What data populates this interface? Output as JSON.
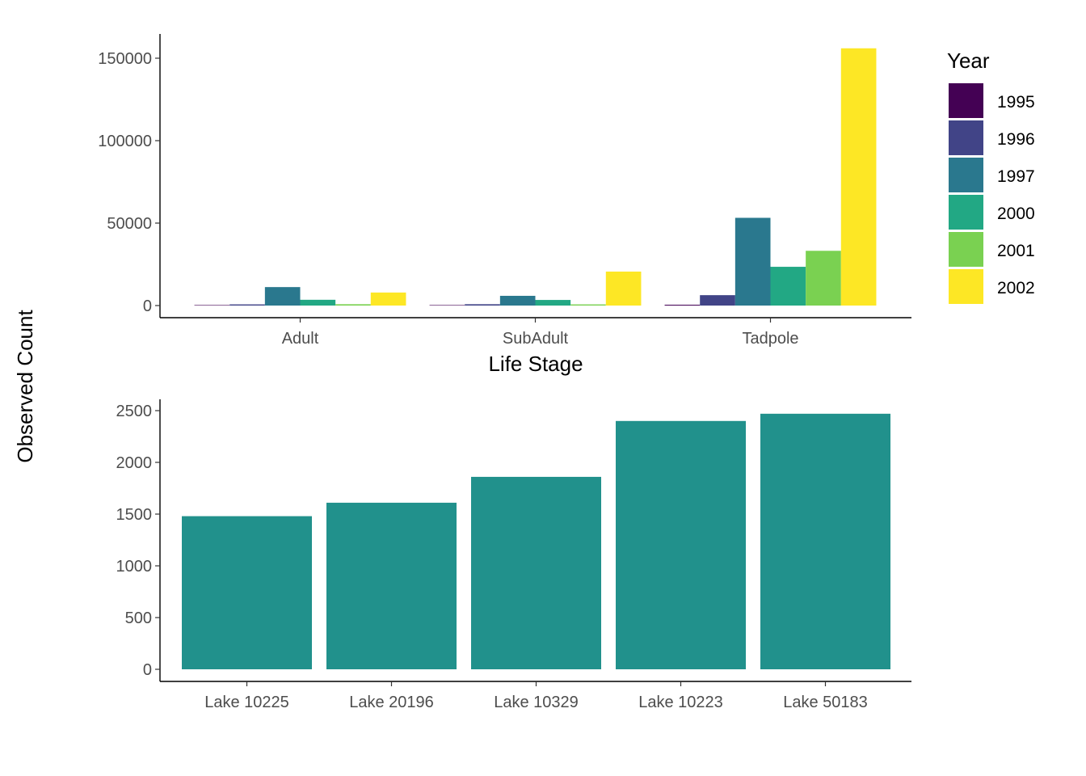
{
  "shared_ylabel": "Observed Count",
  "chart_data": [
    {
      "type": "bar",
      "categories": [
        "Adult",
        "SubAdult",
        "Tadpole"
      ],
      "xlabel": "Life Stage",
      "ylim": [
        0,
        160000
      ],
      "yticks": [
        0,
        50000,
        100000,
        150000
      ],
      "legend": {
        "title": "Year",
        "position": "right"
      },
      "grid": false,
      "series": [
        {
          "name": "1995",
          "color": "#440154",
          "values": [
            300,
            300,
            500
          ]
        },
        {
          "name": "1996",
          "color": "#414487",
          "values": [
            700,
            800,
            6300
          ]
        },
        {
          "name": "1997",
          "color": "#2A788E",
          "values": [
            11200,
            5900,
            53200
          ]
        },
        {
          "name": "2000",
          "color": "#22A884",
          "values": [
            3500,
            3400,
            23500
          ]
        },
        {
          "name": "2001",
          "color": "#7AD151",
          "values": [
            800,
            700,
            33200
          ]
        },
        {
          "name": "2002",
          "color": "#FDE725",
          "values": [
            7900,
            20600,
            156000
          ]
        }
      ]
    },
    {
      "type": "bar",
      "categories": [
        "Lake 10225",
        "Lake 20196",
        "Lake 10329",
        "Lake 10223",
        "Lake 50183"
      ],
      "values": [
        1480,
        1610,
        1860,
        2400,
        2470
      ],
      "color": "#21918C",
      "ylim": [
        0,
        2600
      ],
      "yticks": [
        0,
        500,
        1000,
        1500,
        2000,
        2500
      ],
      "grid": false
    }
  ]
}
